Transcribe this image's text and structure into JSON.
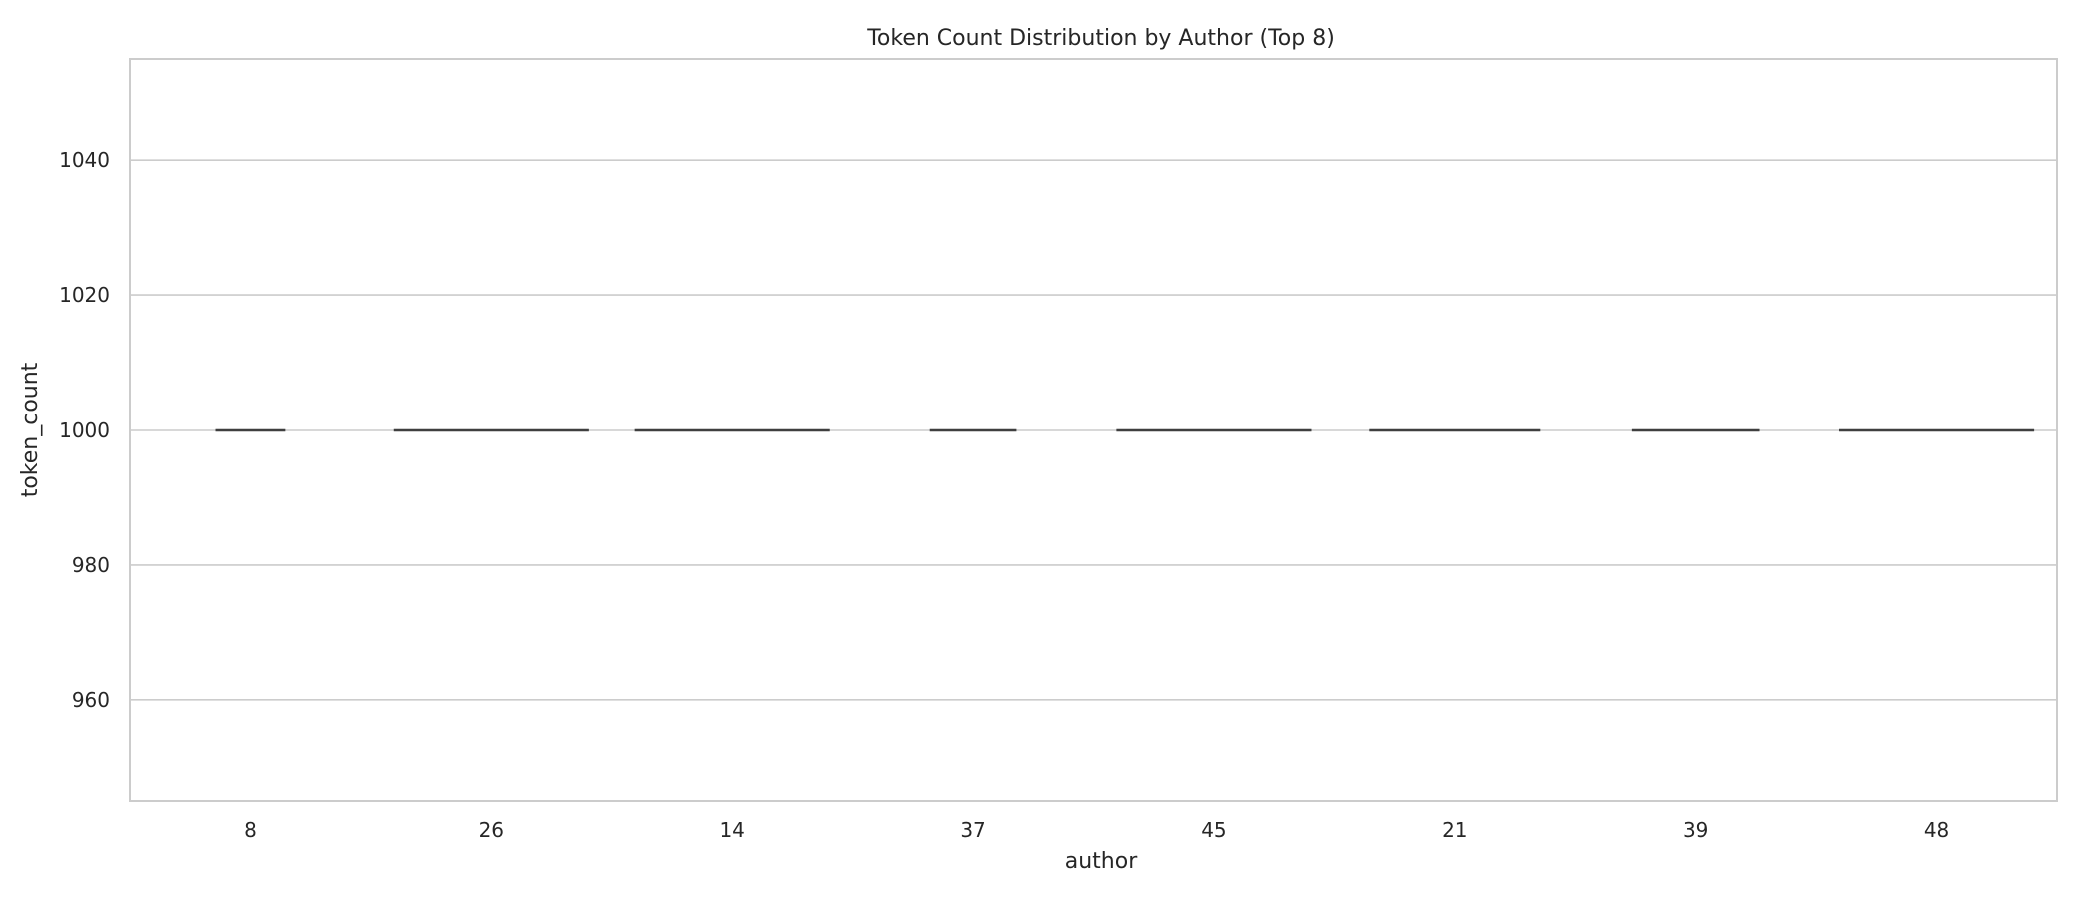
{
  "chart_data": {
    "type": "box",
    "title": "Token Count Distribution by Author (Top 8)",
    "xlabel": "author",
    "ylabel": "token_count",
    "categories": [
      "8",
      "26",
      "14",
      "37",
      "45",
      "21",
      "39",
      "48"
    ],
    "values": [
      1000,
      1000,
      1000,
      1000,
      1000,
      1000,
      1000,
      1000
    ],
    "box_width_fraction": [
      0.29,
      0.81,
      0.81,
      0.36,
      0.81,
      0.71,
      0.53,
      0.81
    ],
    "ylim": [
      945,
      1055
    ],
    "yticks": [
      960,
      980,
      1000,
      1020,
      1040
    ],
    "grid": true,
    "colors": {
      "grid": "#cccccc",
      "spine": "#cccccc",
      "median": "#3f3f3f",
      "text": "#262626"
    }
  }
}
